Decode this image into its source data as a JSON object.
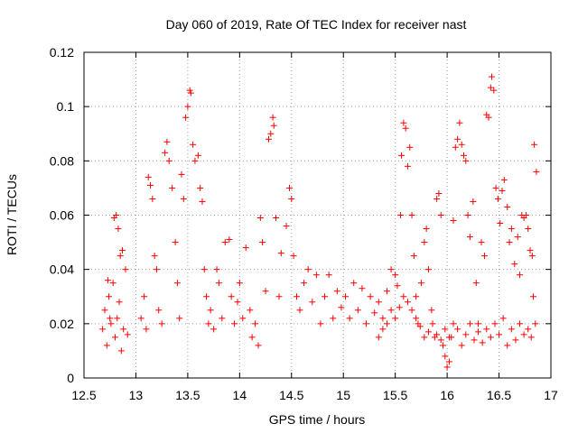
{
  "chart_data": {
    "type": "scatter",
    "title": "Day 060 of 2019, Rate Of TEC Index for receiver nast",
    "xlabel": "GPS time / hours",
    "ylabel": "ROTI / TECUs",
    "xlim": [
      12.5,
      17
    ],
    "ylim": [
      0,
      0.12
    ],
    "xticks": [
      "12.5",
      "13",
      "13.5",
      "14",
      "14.5",
      "15",
      "15.5",
      "16",
      "16.5",
      "17"
    ],
    "yticks": [
      "0",
      "0.02",
      "0.04",
      "0.06",
      "0.08",
      "0.1",
      "0.12"
    ],
    "grid": true,
    "marker": "plus",
    "color": "#ff0000",
    "series": [
      {
        "name": "ROTI",
        "points": [
          [
            12.68,
            0.018
          ],
          [
            12.7,
            0.025
          ],
          [
            12.72,
            0.012
          ],
          [
            12.74,
            0.03
          ],
          [
            12.76,
            0.02
          ],
          [
            12.78,
            0.035
          ],
          [
            12.8,
            0.015
          ],
          [
            12.82,
            0.022
          ],
          [
            12.84,
            0.028
          ],
          [
            12.86,
            0.01
          ],
          [
            12.88,
            0.018
          ],
          [
            12.9,
            0.04
          ],
          [
            12.92,
            0.016
          ],
          [
            12.79,
            0.059
          ],
          [
            12.81,
            0.06
          ],
          [
            12.83,
            0.055
          ],
          [
            12.85,
            0.045
          ],
          [
            12.87,
            0.047
          ],
          [
            12.73,
            0.036
          ],
          [
            12.75,
            0.022
          ],
          [
            13.05,
            0.022
          ],
          [
            13.08,
            0.03
          ],
          [
            13.1,
            0.018
          ],
          [
            13.12,
            0.074
          ],
          [
            13.14,
            0.071
          ],
          [
            13.16,
            0.066
          ],
          [
            13.18,
            0.045
          ],
          [
            13.2,
            0.04
          ],
          [
            13.22,
            0.025
          ],
          [
            13.25,
            0.02
          ],
          [
            13.28,
            0.083
          ],
          [
            13.3,
            0.087
          ],
          [
            13.32,
            0.08
          ],
          [
            13.35,
            0.07
          ],
          [
            13.38,
            0.05
          ],
          [
            13.4,
            0.035
          ],
          [
            13.42,
            0.022
          ],
          [
            13.44,
            0.075
          ],
          [
            13.46,
            0.066
          ],
          [
            13.48,
            0.096
          ],
          [
            13.5,
            0.1
          ],
          [
            13.52,
            0.106
          ],
          [
            13.53,
            0.105
          ],
          [
            13.55,
            0.086
          ],
          [
            13.57,
            0.08
          ],
          [
            13.6,
            0.082
          ],
          [
            13.62,
            0.07
          ],
          [
            13.64,
            0.065
          ],
          [
            13.66,
            0.04
          ],
          [
            13.68,
            0.03
          ],
          [
            13.7,
            0.02
          ],
          [
            13.72,
            0.025
          ],
          [
            13.75,
            0.018
          ],
          [
            13.78,
            0.04
          ],
          [
            13.8,
            0.035
          ],
          [
            13.83,
            0.022
          ],
          [
            13.86,
            0.05
          ],
          [
            13.9,
            0.051
          ],
          [
            13.92,
            0.03
          ],
          [
            13.95,
            0.02
          ],
          [
            13.98,
            0.028
          ],
          [
            14.0,
            0.035
          ],
          [
            14.03,
            0.022
          ],
          [
            14.06,
            0.048
          ],
          [
            14.1,
            0.025
          ],
          [
            14.12,
            0.015
          ],
          [
            14.15,
            0.02
          ],
          [
            14.18,
            0.012
          ],
          [
            14.2,
            0.059
          ],
          [
            14.22,
            0.05
          ],
          [
            14.25,
            0.032
          ],
          [
            14.28,
            0.088
          ],
          [
            14.3,
            0.09
          ],
          [
            14.32,
            0.096
          ],
          [
            14.33,
            0.093
          ],
          [
            14.35,
            0.059
          ],
          [
            14.38,
            0.03
          ],
          [
            14.4,
            0.046
          ],
          [
            14.45,
            0.056
          ],
          [
            14.48,
            0.07
          ],
          [
            14.5,
            0.066
          ],
          [
            14.52,
            0.045
          ],
          [
            14.55,
            0.03
          ],
          [
            14.58,
            0.025
          ],
          [
            14.62,
            0.035
          ],
          [
            14.66,
            0.04
          ],
          [
            14.7,
            0.028
          ],
          [
            14.74,
            0.038
          ],
          [
            14.78,
            0.02
          ],
          [
            14.82,
            0.03
          ],
          [
            14.86,
            0.038
          ],
          [
            14.9,
            0.022
          ],
          [
            14.94,
            0.032
          ],
          [
            14.98,
            0.026
          ],
          [
            15.02,
            0.03
          ],
          [
            15.06,
            0.022
          ],
          [
            15.1,
            0.035
          ],
          [
            15.14,
            0.025
          ],
          [
            15.18,
            0.033
          ],
          [
            15.22,
            0.02
          ],
          [
            15.26,
            0.03
          ],
          [
            15.3,
            0.024
          ],
          [
            15.34,
            0.028
          ],
          [
            15.38,
            0.022
          ],
          [
            15.42,
            0.032
          ],
          [
            15.46,
            0.04
          ],
          [
            15.5,
            0.038
          ],
          [
            15.52,
            0.034
          ],
          [
            15.55,
            0.06
          ],
          [
            15.56,
            0.082
          ],
          [
            15.58,
            0.094
          ],
          [
            15.6,
            0.092
          ],
          [
            15.62,
            0.078
          ],
          [
            15.64,
            0.085
          ],
          [
            15.66,
            0.06
          ],
          [
            15.68,
            0.045
          ],
          [
            15.7,
            0.03
          ],
          [
            15.72,
            0.02
          ],
          [
            15.75,
            0.035
          ],
          [
            15.78,
            0.05
          ],
          [
            15.8,
            0.055
          ],
          [
            15.82,
            0.04
          ],
          [
            15.85,
            0.025
          ],
          [
            15.88,
            0.015
          ],
          [
            15.9,
            0.066
          ],
          [
            15.92,
            0.068
          ],
          [
            15.94,
            0.06
          ],
          [
            15.96,
            0.012
          ],
          [
            15.98,
            0.008
          ],
          [
            16.0,
            0.004
          ],
          [
            16.02,
            0.006
          ],
          [
            16.04,
            0.015
          ],
          [
            16.06,
            0.058
          ],
          [
            16.08,
            0.085
          ],
          [
            16.1,
            0.088
          ],
          [
            16.12,
            0.094
          ],
          [
            16.14,
            0.086
          ],
          [
            16.16,
            0.082
          ],
          [
            16.18,
            0.08
          ],
          [
            16.2,
            0.06
          ],
          [
            16.22,
            0.052
          ],
          [
            16.25,
            0.065
          ],
          [
            16.28,
            0.035
          ],
          [
            16.3,
            0.02
          ],
          [
            16.33,
            0.05
          ],
          [
            16.36,
            0.045
          ],
          [
            16.38,
            0.097
          ],
          [
            16.4,
            0.096
          ],
          [
            16.42,
            0.107
          ],
          [
            16.43,
            0.111
          ],
          [
            16.45,
            0.106
          ],
          [
            16.47,
            0.07
          ],
          [
            16.49,
            0.066
          ],
          [
            16.51,
            0.057
          ],
          [
            16.53,
            0.069
          ],
          [
            16.55,
            0.073
          ],
          [
            16.58,
            0.063
          ],
          [
            16.6,
            0.05
          ],
          [
            16.62,
            0.055
          ],
          [
            16.65,
            0.042
          ],
          [
            16.68,
            0.052
          ],
          [
            16.7,
            0.038
          ],
          [
            16.72,
            0.06
          ],
          [
            16.74,
            0.059
          ],
          [
            16.76,
            0.06
          ],
          [
            16.78,
            0.055
          ],
          [
            16.8,
            0.047
          ],
          [
            16.82,
            0.045
          ],
          [
            16.84,
            0.086
          ],
          [
            16.86,
            0.076
          ],
          [
            16.83,
            0.03
          ],
          [
            16.85,
            0.02
          ],
          [
            16.81,
            0.015
          ],
          [
            16.78,
            0.018
          ],
          [
            16.74,
            0.016
          ],
          [
            16.7,
            0.02
          ],
          [
            16.66,
            0.014
          ],
          [
            16.62,
            0.018
          ],
          [
            16.58,
            0.012
          ],
          [
            16.54,
            0.022
          ],
          [
            16.5,
            0.016
          ],
          [
            16.46,
            0.02
          ],
          [
            16.42,
            0.015
          ],
          [
            16.38,
            0.018
          ],
          [
            16.34,
            0.013
          ],
          [
            16.3,
            0.017
          ],
          [
            16.26,
            0.014
          ],
          [
            16.22,
            0.02
          ],
          [
            16.18,
            0.016
          ],
          [
            16.14,
            0.012
          ],
          [
            16.1,
            0.018
          ],
          [
            16.06,
            0.02
          ],
          [
            16.02,
            0.015
          ],
          [
            15.98,
            0.018
          ],
          [
            15.94,
            0.014
          ],
          [
            15.9,
            0.016
          ],
          [
            15.86,
            0.02
          ],
          [
            15.82,
            0.017
          ],
          [
            15.78,
            0.015
          ],
          [
            15.74,
            0.019
          ],
          [
            15.7,
            0.022
          ],
          [
            15.66,
            0.025
          ],
          [
            15.62,
            0.028
          ],
          [
            15.58,
            0.03
          ],
          [
            15.54,
            0.026
          ],
          [
            15.5,
            0.022
          ],
          [
            15.46,
            0.025
          ],
          [
            15.42,
            0.02
          ],
          [
            15.38,
            0.018
          ],
          [
            15.34,
            0.015
          ]
        ]
      }
    ]
  }
}
